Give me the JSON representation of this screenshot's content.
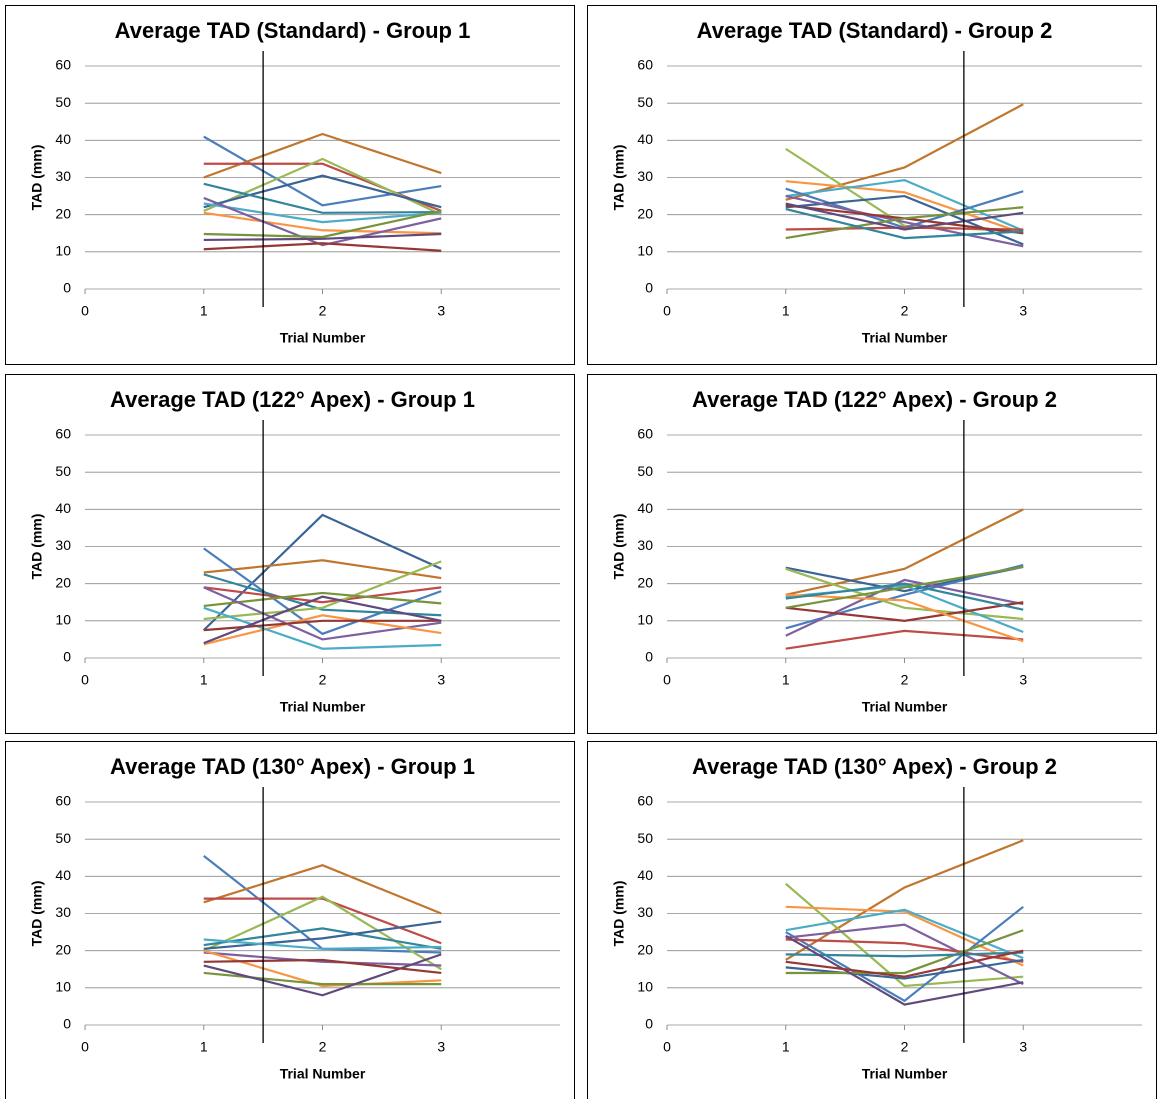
{
  "chart_data": [
    {
      "type": "line",
      "title": "Average TAD (Standard) - Group 1",
      "xlabel": "Trial Number",
      "ylabel": "TAD (mm)",
      "x": [
        1,
        2,
        3
      ],
      "xlim": [
        0,
        4
      ],
      "xticks": [
        0,
        1,
        2,
        3
      ],
      "ylim": [
        0,
        60
      ],
      "yticks": [
        0,
        10,
        20,
        30,
        40,
        50,
        60
      ],
      "grid": true,
      "vline": 1.5,
      "series": [
        {
          "color": "#4A7EBB",
          "values": [
            41,
            22.5,
            27.7
          ]
        },
        {
          "color": "#C0762F",
          "values": [
            30,
            41.7,
            31.2
          ]
        },
        {
          "color": "#BE4B48",
          "values": [
            33.7,
            33.7,
            21
          ]
        },
        {
          "color": "#98B954",
          "values": [
            21,
            35,
            20
          ]
        },
        {
          "color": "#3B6496",
          "values": [
            22,
            30.5,
            22
          ]
        },
        {
          "color": "#31859C",
          "values": [
            28.3,
            20.5,
            20.7
          ]
        },
        {
          "color": "#4BACC6",
          "values": [
            23,
            18,
            20.5
          ]
        },
        {
          "color": "#F79646",
          "values": [
            20.5,
            15.8,
            15
          ]
        },
        {
          "color": "#7D60A0",
          "values": [
            24.5,
            11.8,
            19
          ]
        },
        {
          "color": "#77933C",
          "values": [
            14.8,
            14,
            21
          ]
        },
        {
          "color": "#604A7B",
          "values": [
            13.2,
            13.5,
            14.8
          ]
        },
        {
          "color": "#953735",
          "values": [
            10.7,
            12.3,
            10.3
          ]
        }
      ]
    },
    {
      "type": "line",
      "title": "Average TAD (Standard) - Group 2",
      "xlabel": "Trial Number",
      "ylabel": "TAD (mm)",
      "x": [
        1,
        2,
        3
      ],
      "xlim": [
        0,
        4
      ],
      "xticks": [
        0,
        1,
        2,
        3
      ],
      "ylim": [
        0,
        60
      ],
      "yticks": [
        0,
        10,
        20,
        30,
        40,
        50,
        60
      ],
      "grid": true,
      "vline": 2.5,
      "series": [
        {
          "color": "#C0762F",
          "values": [
            24,
            32.7,
            49.7
          ]
        },
        {
          "color": "#98B954",
          "values": [
            37.7,
            17,
            15.5
          ]
        },
        {
          "color": "#F79646",
          "values": [
            29,
            26,
            15
          ]
        },
        {
          "color": "#4BACC6",
          "values": [
            25,
            29.3,
            15.7
          ]
        },
        {
          "color": "#4A7EBB",
          "values": [
            27,
            16.5,
            26.3
          ]
        },
        {
          "color": "#3B6496",
          "values": [
            22,
            25,
            12
          ]
        },
        {
          "color": "#7D60A0",
          "values": [
            25,
            18,
            11.5
          ]
        },
        {
          "color": "#BE4B48",
          "values": [
            16,
            16.5,
            16
          ]
        },
        {
          "color": "#953735",
          "values": [
            22.5,
            19,
            15
          ]
        },
        {
          "color": "#77933C",
          "values": [
            13.7,
            19,
            22
          ]
        },
        {
          "color": "#31859C",
          "values": [
            21.5,
            13.7,
            15.5
          ]
        },
        {
          "color": "#604A7B",
          "values": [
            23,
            16,
            20.5
          ]
        }
      ]
    },
    {
      "type": "line",
      "title": "Average TAD (122° Apex) - Group 1",
      "xlabel": "Trial Number",
      "ylabel": "TAD (mm)",
      "x": [
        1,
        2,
        3
      ],
      "xlim": [
        0,
        4
      ],
      "xticks": [
        0,
        1,
        2,
        3
      ],
      "ylim": [
        0,
        60
      ],
      "yticks": [
        0,
        10,
        20,
        30,
        40,
        50,
        60
      ],
      "grid": true,
      "vline": 1.5,
      "series": [
        {
          "color": "#3B6496",
          "values": [
            7.5,
            38.5,
            24
          ]
        },
        {
          "color": "#C0762F",
          "values": [
            23,
            26.3,
            21.5
          ]
        },
        {
          "color": "#4A7EBB",
          "values": [
            29.5,
            6.5,
            18
          ]
        },
        {
          "color": "#31859C",
          "values": [
            22.5,
            13,
            11.5
          ]
        },
        {
          "color": "#BE4B48",
          "values": [
            19,
            15,
            19
          ]
        },
        {
          "color": "#98B954",
          "values": [
            10.5,
            13.5,
            26
          ]
        },
        {
          "color": "#77933C",
          "values": [
            14,
            17.5,
            14.7
          ]
        },
        {
          "color": "#7D60A0",
          "values": [
            19,
            5,
            9.5
          ]
        },
        {
          "color": "#F79646",
          "values": [
            3.7,
            11.5,
            6.7
          ]
        },
        {
          "color": "#4BACC6",
          "values": [
            13.5,
            2.5,
            3.5
          ]
        },
        {
          "color": "#953735",
          "values": [
            7.5,
            10,
            10
          ]
        },
        {
          "color": "#604A7B",
          "values": [
            4,
            16.5,
            10
          ]
        }
      ]
    },
    {
      "type": "line",
      "title": "Average TAD (122° Apex) - Group 2",
      "xlabel": "Trial Number",
      "ylabel": "TAD (mm)",
      "x": [
        1,
        2,
        3
      ],
      "xlim": [
        0,
        4
      ],
      "xticks": [
        0,
        1,
        2,
        3
      ],
      "ylim": [
        0,
        60
      ],
      "yticks": [
        0,
        10,
        20,
        30,
        40,
        50,
        60
      ],
      "grid": true,
      "vline": 2.5,
      "series": [
        {
          "color": "#C0762F",
          "values": [
            17,
            24,
            40
          ]
        },
        {
          "color": "#3B6496",
          "values": [
            24.3,
            18,
            24.5
          ]
        },
        {
          "color": "#4A7EBB",
          "values": [
            8,
            17,
            25
          ]
        },
        {
          "color": "#98B954",
          "values": [
            24,
            13.5,
            10.5
          ]
        },
        {
          "color": "#4BACC6",
          "values": [
            16.5,
            19.5,
            7
          ]
        },
        {
          "color": "#7D60A0",
          "values": [
            6,
            21,
            14.5
          ]
        },
        {
          "color": "#BE4B48",
          "values": [
            2.5,
            7.3,
            5
          ]
        },
        {
          "color": "#953735",
          "values": [
            13.5,
            10,
            15
          ]
        },
        {
          "color": "#F79646",
          "values": [
            17,
            15.5,
            4.5
          ]
        },
        {
          "color": "#31859C",
          "values": [
            16,
            20,
            13
          ]
        },
        {
          "color": "#77933C",
          "values": [
            13.5,
            19,
            24.5
          ]
        }
      ]
    },
    {
      "type": "line",
      "title": "Average TAD (130° Apex) - Group 1",
      "xlabel": "Trial Number",
      "ylabel": "TAD (mm)",
      "x": [
        1,
        2,
        3
      ],
      "xlim": [
        0,
        4
      ],
      "xticks": [
        0,
        1,
        2,
        3
      ],
      "ylim": [
        0,
        60
      ],
      "yticks": [
        0,
        10,
        20,
        30,
        40,
        50,
        60
      ],
      "grid": true,
      "vline": 1.5,
      "series": [
        {
          "color": "#4A7EBB",
          "values": [
            45.5,
            20.5,
            19.5
          ]
        },
        {
          "color": "#C0762F",
          "values": [
            33,
            43,
            30
          ]
        },
        {
          "color": "#BE4B48",
          "values": [
            34,
            34,
            22
          ]
        },
        {
          "color": "#98B954",
          "values": [
            20,
            34.5,
            15
          ]
        },
        {
          "color": "#31859C",
          "values": [
            21.5,
            26,
            20.5
          ]
        },
        {
          "color": "#3B6496",
          "values": [
            20.5,
            23.3,
            27.8
          ]
        },
        {
          "color": "#4BACC6",
          "values": [
            23,
            20.5,
            21
          ]
        },
        {
          "color": "#7D60A0",
          "values": [
            19.5,
            17,
            16
          ]
        },
        {
          "color": "#F79646",
          "values": [
            20,
            10.5,
            12
          ]
        },
        {
          "color": "#77933C",
          "values": [
            14,
            11,
            11
          ]
        },
        {
          "color": "#604A7B",
          "values": [
            16,
            8,
            19
          ]
        },
        {
          "color": "#953735",
          "values": [
            17,
            17.5,
            14
          ]
        }
      ]
    },
    {
      "type": "line",
      "title": "Average TAD (130° Apex) - Group 2",
      "xlabel": "Trial Number",
      "ylabel": "TAD (mm)",
      "x": [
        1,
        2,
        3
      ],
      "xlim": [
        0,
        4
      ],
      "xticks": [
        0,
        1,
        2,
        3
      ],
      "ylim": [
        0,
        60
      ],
      "yticks": [
        0,
        10,
        20,
        30,
        40,
        50,
        60
      ],
      "grid": true,
      "vline": 2.5,
      "series": [
        {
          "color": "#C0762F",
          "values": [
            17.5,
            37,
            49.7
          ]
        },
        {
          "color": "#98B954",
          "values": [
            38,
            10.5,
            13
          ]
        },
        {
          "color": "#F79646",
          "values": [
            31.8,
            30.5,
            16
          ]
        },
        {
          "color": "#4BACC6",
          "values": [
            25.5,
            31,
            18
          ]
        },
        {
          "color": "#4A7EBB",
          "values": [
            25,
            6.5,
            31.8
          ]
        },
        {
          "color": "#7D60A0",
          "values": [
            23.5,
            27,
            11
          ]
        },
        {
          "color": "#BE4B48",
          "values": [
            23,
            22,
            17
          ]
        },
        {
          "color": "#3B6496",
          "values": [
            15.5,
            12.5,
            17.5
          ]
        },
        {
          "color": "#77933C",
          "values": [
            14,
            14,
            25.5
          ]
        },
        {
          "color": "#31859C",
          "values": [
            19,
            18.5,
            19.5
          ]
        },
        {
          "color": "#604A7B",
          "values": [
            24,
            5.5,
            11.5
          ]
        },
        {
          "color": "#953735",
          "values": [
            17,
            13,
            20
          ]
        }
      ]
    }
  ]
}
